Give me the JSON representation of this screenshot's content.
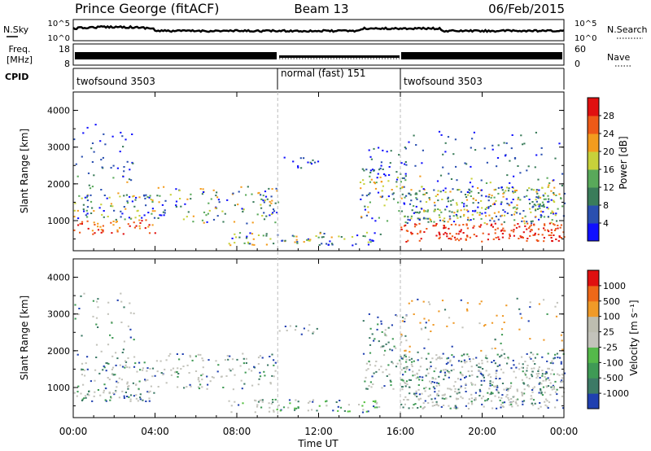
{
  "header": {
    "station": "Prince George (fitACF)",
    "beam": "Beam 13",
    "date": "06/Feb/2015"
  },
  "nsky_panel": {
    "left_label": "N.Sky",
    "left_ticks": [
      "10^5",
      "10^0"
    ],
    "right_label": "N.Search",
    "right_ticks": [
      "10^5",
      "10^0"
    ]
  },
  "freq_panel": {
    "left_label_1": "Freq.",
    "left_label_2": "[MHz]",
    "left_ticks": [
      "18",
      "8"
    ],
    "right_label": "Nave",
    "right_ticks": [
      "60",
      "0"
    ]
  },
  "cpid": {
    "label": "CPID",
    "segments": [
      {
        "name": "twofsound 3503",
        "start_hour": 0,
        "end_hour": 10
      },
      {
        "name": "normal (fast) 151",
        "start_hour": 10,
        "end_hour": 16
      },
      {
        "name": "twofsound 3503",
        "start_hour": 16,
        "end_hour": 24
      }
    ]
  },
  "chart_data": [
    {
      "type": "heatmap",
      "parameter": "Power",
      "ylabel": "Slant Range [km]",
      "colorbar_label": "Power [dB]",
      "x_range_hours": [
        0,
        24
      ],
      "y_range_km": [
        180,
        4500
      ],
      "y_ticks": [
        "1000",
        "2000",
        "3000",
        "4000"
      ],
      "colorbar_ticks": [
        "4",
        "8",
        "12",
        "16",
        "20",
        "24",
        "28"
      ],
      "colorbar_colors": [
        "#1010ff",
        "#2a4fb0",
        "#3a7c5a",
        "#59a95a",
        "#c7d13a",
        "#f39c1e",
        "#ee5a18",
        "#e01010"
      ]
    },
    {
      "type": "heatmap",
      "parameter": "Velocity",
      "ylabel": "Slant Range [km]",
      "colorbar_label": "Velocity [m s⁻¹]",
      "x_range_hours": [
        0,
        24
      ],
      "y_range_km": [
        180,
        4500
      ],
      "y_ticks": [
        "1000",
        "2000",
        "3000",
        "4000"
      ],
      "colorbar_ticks": [
        "1000",
        "500",
        "100",
        "25",
        "-25",
        "-100",
        "-500",
        "-1000"
      ],
      "colorbar_colors": [
        "#2040b0",
        "#3d7a66",
        "#3f9a55",
        "#55b94a",
        "#c3c3bb",
        "#bdbdb0",
        "#ef9a28",
        "#ee6818",
        "#e01010"
      ]
    }
  ],
  "time_axis": {
    "label": "Time UT",
    "ticks": [
      "00:00",
      "04:00",
      "08:00",
      "12:00",
      "16:00",
      "20:00",
      "00:00"
    ]
  }
}
